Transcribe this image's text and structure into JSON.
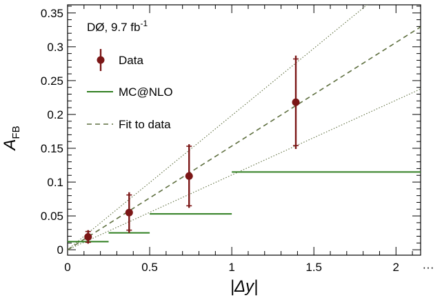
{
  "chart_data": {
    "type": "scatter",
    "annotation": {
      "experiment": "DØ, 9.7 fb",
      "superscript": "-1"
    },
    "xlabel": "|Δy|",
    "ylabel": {
      "main": "A",
      "sub": "FB"
    },
    "xlim": [
      0,
      2.15
    ],
    "ylim": [
      -0.008,
      0.362
    ],
    "x_ticks": [
      "0",
      "0.5",
      "1",
      "1.5",
      "2"
    ],
    "x_tick_values": [
      0,
      0.5,
      1,
      1.5,
      2
    ],
    "x_axis_continuation": "···",
    "y_ticks": [
      "0",
      "0.05",
      "0.1",
      "0.15",
      "0.2",
      "0.25",
      "0.3",
      "0.35"
    ],
    "y_tick_values": [
      0,
      0.05,
      0.1,
      0.15,
      0.2,
      0.25,
      0.3,
      0.35
    ],
    "grid": false,
    "legend": {
      "position": "top-left",
      "entries": [
        {
          "label": "Data",
          "style": "marker-errorbar"
        },
        {
          "label": "MC@NLO",
          "style": "solid"
        },
        {
          "label": "Fit to data",
          "style": "dashed"
        }
      ]
    },
    "series": [
      {
        "name": "Data",
        "x": [
          0.125,
          0.375,
          0.74,
          1.39
        ],
        "y": [
          0.019,
          0.055,
          0.109,
          0.218
        ],
        "err_stat": [
          0.008,
          0.026,
          0.044,
          0.064
        ],
        "err_total": [
          0.01,
          0.03,
          0.047,
          0.069
        ]
      },
      {
        "name": "MC@NLO",
        "bins": [
          [
            0,
            0.25
          ],
          [
            0.25,
            0.5
          ],
          [
            0.5,
            1.0
          ],
          [
            1.0,
            2.15
          ]
        ],
        "values": [
          0.012,
          0.025,
          0.053,
          0.115
        ]
      },
      {
        "name": "Fit to data",
        "slope": 0.1532,
        "band_slopes": [
          0.1105,
          0.1985
        ]
      }
    ],
    "colors": {
      "data": "#7b1616",
      "mc": "#2e7d1e",
      "fit": "#5d6e3e",
      "band": "#5d6e3e"
    }
  }
}
